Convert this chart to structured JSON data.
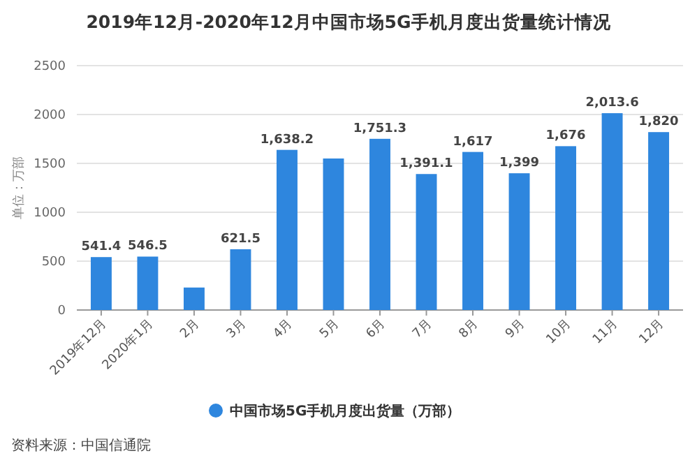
{
  "chart_data": {
    "type": "bar",
    "title": "2019年12月-2020年12月中国市场5G手机月度出货量统计情况",
    "ylabel": "单位：万部",
    "categories": [
      "2019年12月",
      "2020年1月",
      "2月",
      "3月",
      "4月",
      "5月",
      "6月",
      "7月",
      "8月",
      "9月",
      "10月",
      "11月",
      "12月"
    ],
    "series": [
      {
        "name": "中国市场5G手机月度出货量（万部）",
        "color": "#2e86de",
        "values": [
          541.4,
          546.5,
          230,
          621.5,
          1638.2,
          1550,
          1751.3,
          1391.1,
          1617,
          1399,
          1676,
          2013.6,
          1820
        ],
        "value_labels": [
          "541.4",
          "546.5",
          null,
          "621.5",
          "1,638.2",
          null,
          "1,751.3",
          "1,391.1",
          "1,617",
          "1,399",
          "1,676",
          "2,013.6",
          "1,820"
        ]
      }
    ],
    "ylim": [
      0,
      2500
    ],
    "yticks": [
      0,
      500,
      1000,
      1500,
      2000,
      2500
    ],
    "grid": "y",
    "legend": "bottom",
    "annotations": [
      "资料来源：中国信通院"
    ]
  }
}
